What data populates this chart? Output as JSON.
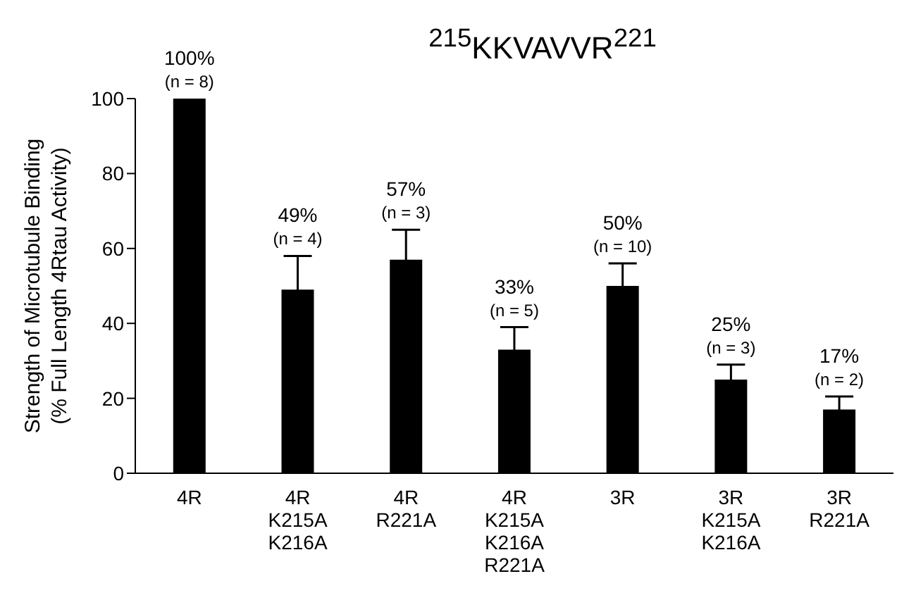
{
  "chart_data": {
    "type": "bar",
    "title": "$^{215}$KKVAVVR$^{221}$",
    "ylabel": "Strength of Microtubule Binding\n(% Full Length 4Rtau Activity)",
    "categories": [
      "4R",
      "4R\nK215A\nK216A",
      "4R\nR221A",
      "4R\nK215A\nK216A\nR221A",
      "3R",
      "3R\nK215A\nK216A",
      "3R\nR221A"
    ],
    "values": [
      100,
      49,
      57,
      33,
      50,
      25,
      17
    ],
    "errors": [
      null,
      9,
      8,
      6,
      6,
      4,
      3.5
    ],
    "value_labels": [
      "100%\n(n = 8)",
      "49%\n(n = 4)",
      "57%\n(n = 3)",
      "33%\n(n = 5)",
      "50%\n(n = 10)",
      "25%\n(n = 3)",
      "17%\n(n = 2)"
    ],
    "color": "#000000",
    "ylim": [
      0,
      100
    ],
    "yticks": [
      0,
      20,
      40,
      60,
      80,
      100
    ],
    "grid": false,
    "legend": false
  }
}
